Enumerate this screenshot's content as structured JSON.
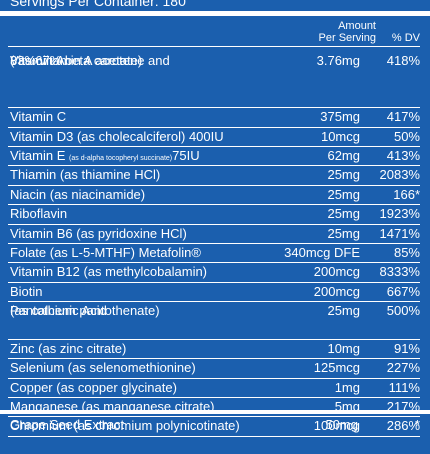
{
  "header": {
    "servings": "Servings Per Container: 180",
    "amount_line1": "Amount",
    "amount_line2": "Per Serving",
    "dv": "% DV"
  },
  "rows": [
    {
      "lines": [
        "Vitamin A",
        "( as 67% beta carotene and",
        "33% vitamin A acetate)"
      ],
      "amount": "3.76mg",
      "dv": "418%"
    },
    {
      "lines": [
        "Vitamin C"
      ],
      "amount": "375mg",
      "dv": "417%"
    },
    {
      "lines": [
        "Vitamin D3 (as cholecalciferol) 400IU"
      ],
      "amount": "10mcg",
      "dv": "50%"
    },
    {
      "lines": [
        "Vitamin E"
      ],
      "small": "(as d-alpha tocopheryl succinate)",
      "suffix": "75IU",
      "amount": "62mg",
      "dv": "413%"
    },
    {
      "lines": [
        "Thiamin (as thiamine HCl)"
      ],
      "amount": "25mg",
      "dv": "2083%"
    },
    {
      "lines": [
        "Niacin (as niacinamide)"
      ],
      "amount": "25mg",
      "dv": "166*"
    },
    {
      "lines": [
        "Riboflavin"
      ],
      "amount": "25mg",
      "dv": "1923%"
    },
    {
      "lines": [
        "Vitamin B6 (as pyridoxine HCl)"
      ],
      "amount": "25mg",
      "dv": "1471%"
    },
    {
      "lines": [
        "Folate (as L-5-MTHF) Metafolin®"
      ],
      "amount": "340mcg DFE",
      "dv": "85%"
    },
    {
      "lines": [
        "Vitamin B12 (as methylcobalamin)"
      ],
      "amount": "200mcg",
      "dv": "8333%"
    },
    {
      "lines": [
        "Biotin"
      ],
      "amount": "200mcg",
      "dv": "667%"
    },
    {
      "lines": [
        "Pantothenic Acid",
        "(as calcium pantothenate)"
      ],
      "amount": "25mg",
      "dv": "500%"
    },
    {
      "lines": [
        "Zinc (as zinc citrate)"
      ],
      "amount": "10mg",
      "dv": "91%"
    },
    {
      "lines": [
        "Selenium (as selenomethionine)"
      ],
      "amount": "125mcg",
      "dv": "227%"
    },
    {
      "lines": [
        "Copper (as copper glycinate)"
      ],
      "amount": "1mg",
      "dv": "111%"
    },
    {
      "lines": [
        "Manganese (as manganese citrate)"
      ],
      "amount": "5mg",
      "dv": "217%"
    },
    {
      "lines": [
        "Chromium (as chromium polynicotinate)"
      ],
      "amount": "100mcg",
      "dv": "286%"
    }
  ],
  "footer": {
    "name": "Grape Seed Extract",
    "amount": "50mg",
    "dv": "*"
  }
}
